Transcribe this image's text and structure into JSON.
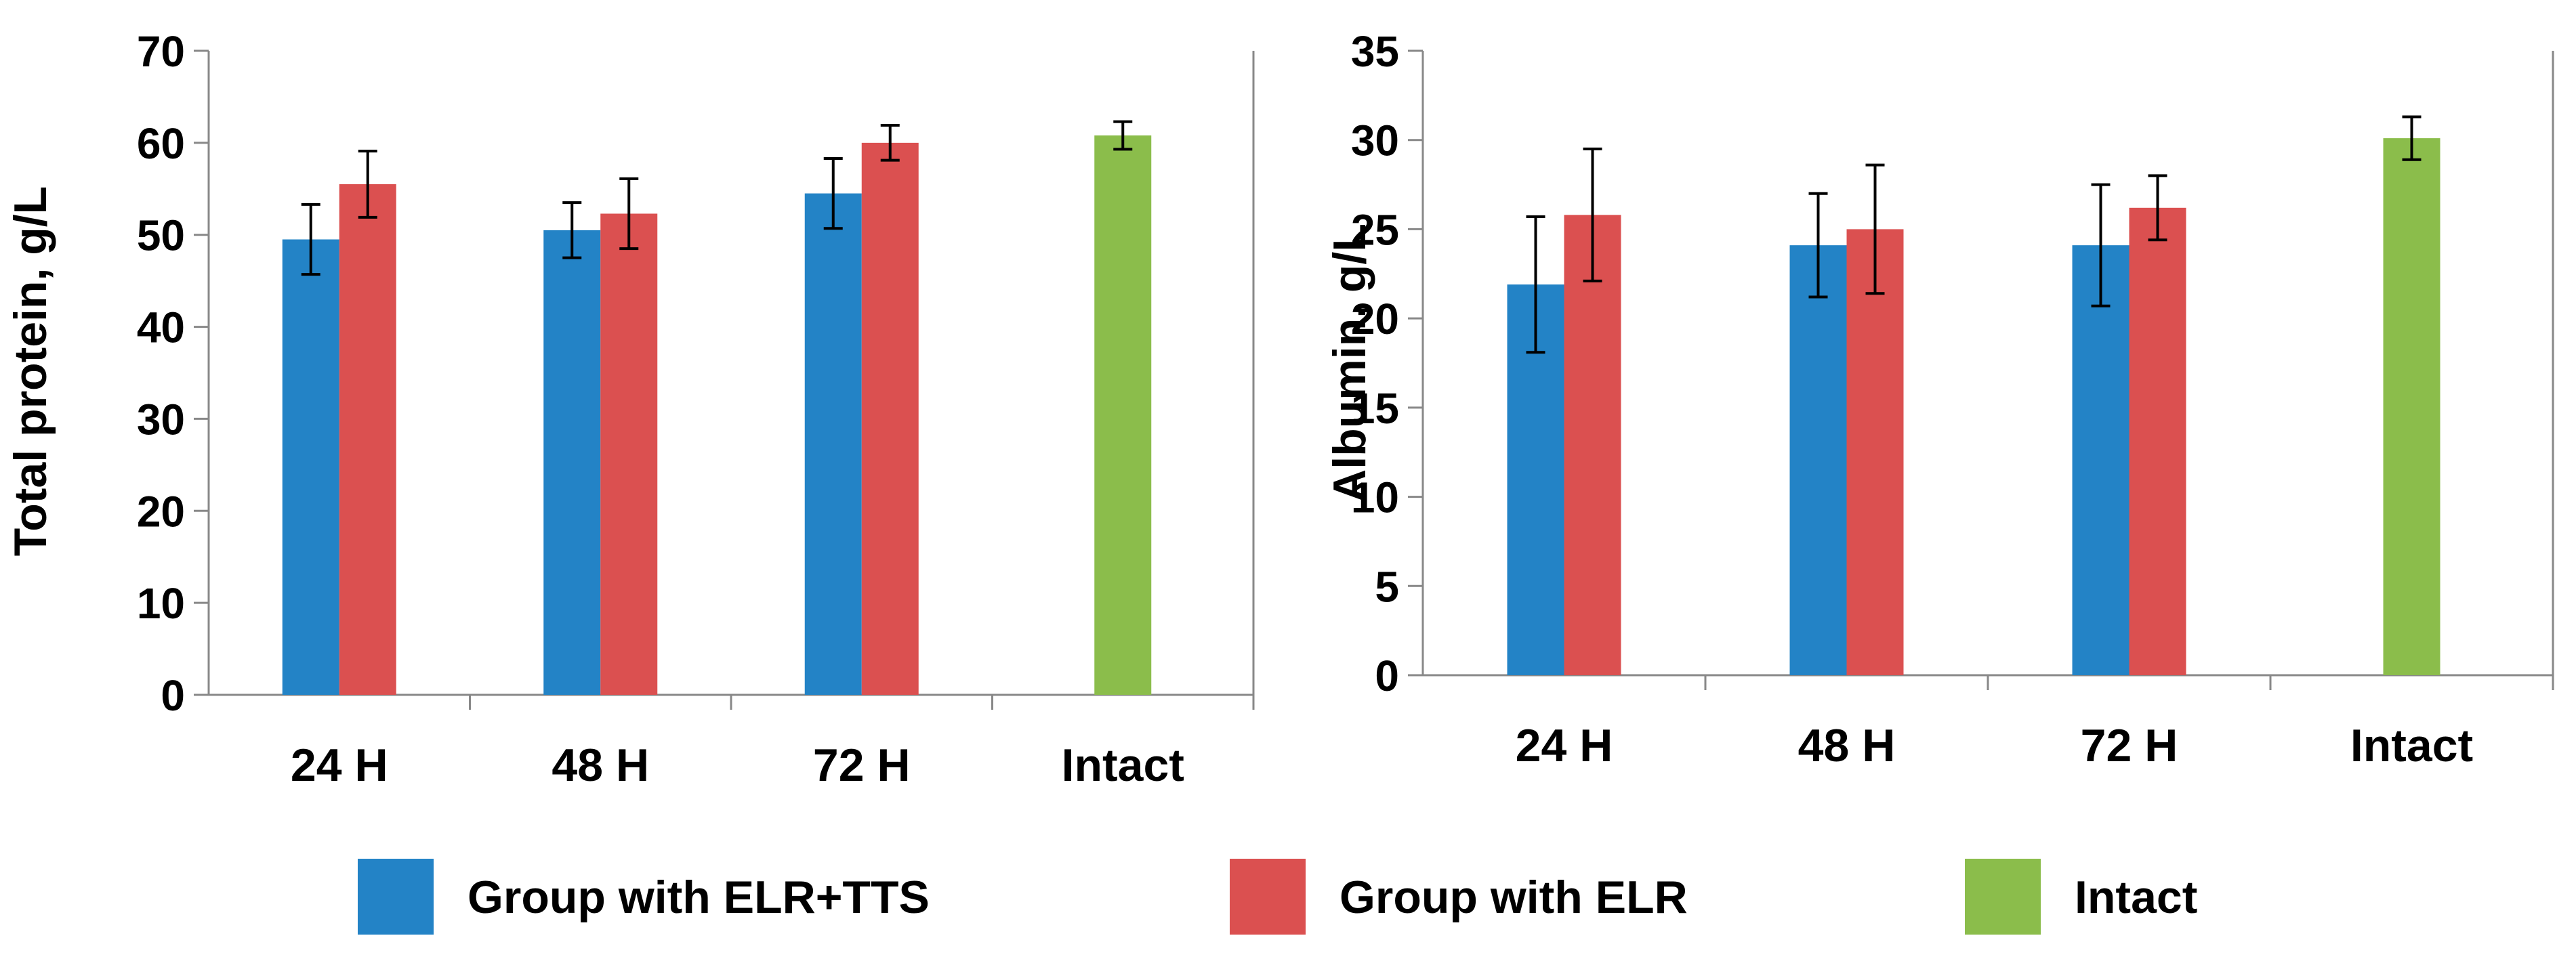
{
  "colors": {
    "series_1": "#2383c6",
    "series_2": "#db5050",
    "series_3": "#8bbd4b",
    "axis": "#888888"
  },
  "chart_data": [
    {
      "type": "bar",
      "title": "",
      "xlabel": "",
      "ylabel": "Total protein, g/L",
      "ylim": [
        0,
        70
      ],
      "yticks": [
        0,
        10,
        20,
        30,
        40,
        50,
        60,
        70
      ],
      "categories": [
        "24 H",
        "48 H",
        "72 H",
        "Intact"
      ],
      "series": [
        {
          "name": "Group with ELR+TTS",
          "values": [
            49.5,
            50.5,
            54.5,
            null
          ],
          "errors": [
            3.8,
            3.0,
            3.8,
            null
          ]
        },
        {
          "name": "Group with ELR",
          "values": [
            55.5,
            52.3,
            60.0,
            null
          ],
          "errors": [
            3.6,
            3.8,
            1.9,
            null
          ]
        },
        {
          "name": "Intact",
          "values": [
            null,
            null,
            null,
            60.8
          ],
          "errors": [
            null,
            null,
            null,
            1.5
          ]
        }
      ]
    },
    {
      "type": "bar",
      "title": "",
      "xlabel": "",
      "ylabel": "Albumin, g/L",
      "ylim": [
        0,
        35
      ],
      "yticks": [
        0,
        5,
        10,
        15,
        20,
        25,
        30,
        35
      ],
      "categories": [
        "24 H",
        "48 H",
        "72 H",
        "Intact"
      ],
      "series": [
        {
          "name": "Group with ELR+TTS",
          "values": [
            21.9,
            24.1,
            24.1,
            null
          ],
          "errors": [
            3.8,
            2.9,
            3.4,
            null
          ]
        },
        {
          "name": "Group with ELR",
          "values": [
            25.8,
            25.0,
            26.2,
            null
          ],
          "errors": [
            3.7,
            3.6,
            1.8,
            null
          ]
        },
        {
          "name": "Intact",
          "values": [
            null,
            null,
            null,
            30.1
          ],
          "errors": [
            null,
            null,
            null,
            1.2
          ]
        }
      ]
    }
  ],
  "legend": [
    {
      "label": "Group with ELR+TTS"
    },
    {
      "label": "Group with ELR"
    },
    {
      "label": "Intact"
    }
  ]
}
